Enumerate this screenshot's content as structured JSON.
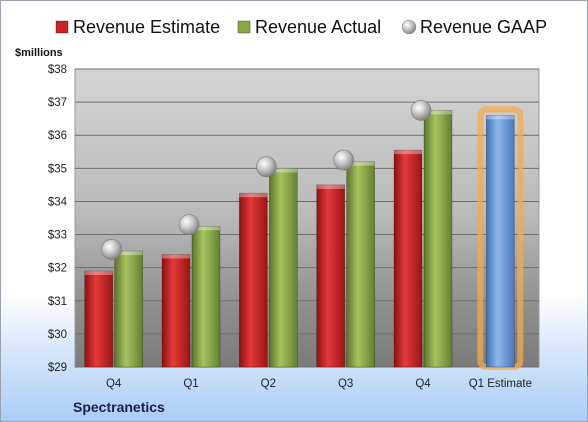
{
  "chart_data": {
    "type": "bar",
    "categories": [
      "Q4",
      "Q1",
      "Q2",
      "Q3",
      "Q4",
      "Q1 Estimate"
    ],
    "ylabel": "$millions",
    "ylim": [
      29,
      38
    ],
    "yticks": [
      "$29",
      "$30",
      "$31",
      "$32",
      "$33",
      "$34",
      "$35",
      "$36",
      "$37",
      "$38"
    ],
    "grid": true,
    "legend_position": "top",
    "series": [
      {
        "name": "Revenue Estimate",
        "type": "bar",
        "color": "#cc2222",
        "values": [
          31.9,
          32.4,
          34.25,
          34.5,
          35.55,
          null
        ]
      },
      {
        "name": "Revenue Actual",
        "type": "bar",
        "color": "#88a844",
        "values": [
          32.5,
          33.25,
          35.0,
          35.2,
          36.75,
          null
        ]
      },
      {
        "name": "Revenue GAAP",
        "type": "scatter",
        "color": "#b8b8b8",
        "values": [
          32.55,
          33.3,
          35.05,
          35.25,
          36.75,
          null
        ]
      },
      {
        "name": "Q1 Estimate",
        "type": "bar",
        "color": "#6f9bd8",
        "highlight": "#f5a94a",
        "values": [
          null,
          null,
          null,
          null,
          null,
          36.6
        ]
      }
    ]
  },
  "company": "Spectranetics"
}
